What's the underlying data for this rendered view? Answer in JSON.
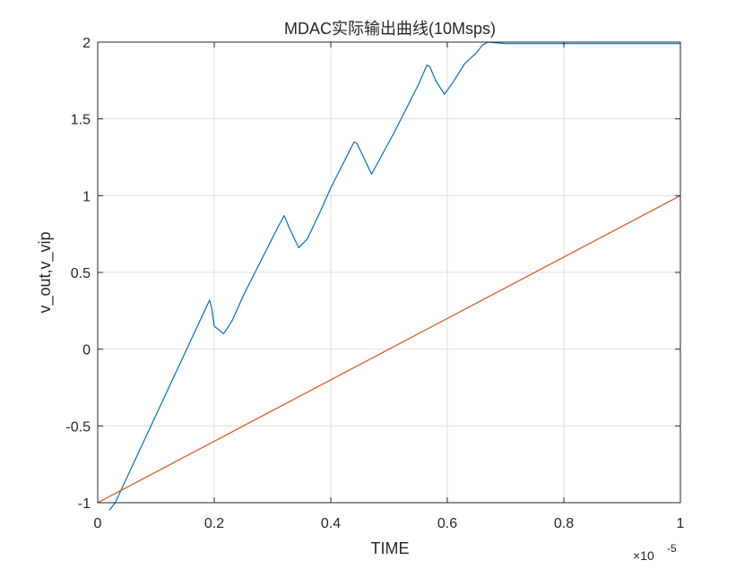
{
  "chart_data": {
    "type": "line",
    "title": "MDAC实际输出曲线(10Msps)",
    "xlabel": "TIME",
    "ylabel": "v_out,v_vip",
    "x_exponent": {
      "base": "×10",
      "power": "-5"
    },
    "xlim": [
      0,
      1e-05
    ],
    "ylim": [
      -1,
      2
    ],
    "x_tick_labels": [
      "0",
      "0.2",
      "0.4",
      "0.6",
      "0.8",
      "1"
    ],
    "y_tick_labels": [
      "-1",
      "-0.5",
      "0",
      "0.5",
      "1",
      "1.5",
      "2"
    ],
    "x_ticks": [
      0,
      2e-06,
      4e-06,
      6e-06,
      8e-06,
      1e-05
    ],
    "y_ticks": [
      -1,
      -0.5,
      0,
      0.5,
      1,
      1.5,
      2
    ],
    "grid": true,
    "series": [
      {
        "color": "#0072BD",
        "x": [
          2e-07,
          3e-07,
          1.92e-06,
          1.96e-06,
          2e-06,
          2.1e-06,
          2.16e-06,
          2.3e-06,
          2.5e-06,
          2.7e-06,
          2.9e-06,
          3.1e-06,
          3.2e-06,
          3.3e-06,
          3.45e-06,
          3.6e-06,
          3.8e-06,
          4e-06,
          4.2e-06,
          4.4e-06,
          4.45e-06,
          4.6e-06,
          4.7e-06,
          4.9e-06,
          5.1e-06,
          5.3e-06,
          5.5e-06,
          5.65e-06,
          5.7e-06,
          5.8e-06,
          5.95e-06,
          6.1e-06,
          6.3e-06,
          6.5e-06,
          6.6e-06,
          6.7e-06,
          7e-06,
          7.5e-06,
          8e-06,
          8.5e-06,
          9e-06,
          1e-05
        ],
        "y": [
          -1.05,
          -1.0,
          0.32,
          0.26,
          0.15,
          0.12,
          0.1,
          0.18,
          0.35,
          0.5,
          0.65,
          0.8,
          0.87,
          0.78,
          0.66,
          0.72,
          0.88,
          1.05,
          1.2,
          1.35,
          1.34,
          1.22,
          1.14,
          1.28,
          1.42,
          1.57,
          1.72,
          1.85,
          1.84,
          1.75,
          1.66,
          1.74,
          1.86,
          1.93,
          1.98,
          2.0,
          1.99,
          1.99,
          1.99,
          1.99,
          1.99,
          1.99
        ]
      },
      {
        "color": "#D95319",
        "x": [
          0,
          1e-05
        ],
        "y": [
          -1,
          1
        ]
      }
    ]
  }
}
